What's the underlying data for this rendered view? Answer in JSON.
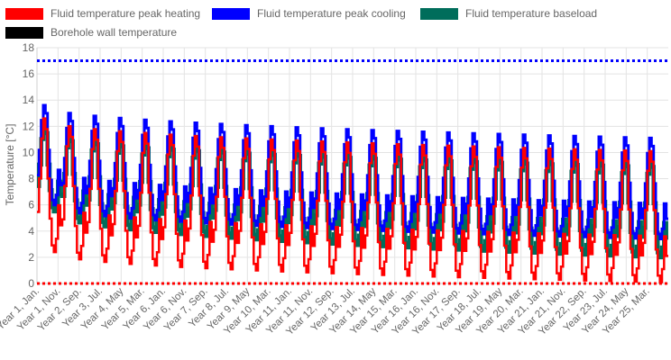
{
  "chart_data": {
    "type": "line",
    "ylabel": "Temperature [°C]",
    "ylim": [
      0,
      18
    ],
    "yticks": [
      0,
      2,
      4,
      6,
      8,
      10,
      12,
      14,
      16,
      18
    ],
    "grid": true,
    "legend_position": "top",
    "x_tick_labels": [
      "Year 1, Jan.",
      "Year 1, Nov.",
      "Year 2, Sep.",
      "Year 3, Jul.",
      "Year 4, May",
      "Year 5, Mar.",
      "Year 6, Jan.",
      "Year 6, Nov.",
      "Year 7, Sep.",
      "Year 8, Jul.",
      "Year 9, May",
      "Year 10, Mar.",
      "Year 11, Jan.",
      "Year 11, Nov.",
      "Year 12, Sep.",
      "Year 13, Jul.",
      "Year 14, May",
      "Year 15, Mar.",
      "Year 16, Jan.",
      "Year 16, Nov.",
      "Year 17, Sep.",
      "Year 18, Jul.",
      "Year 19, May",
      "Year 20, Mar.",
      "Year 21, Jan.",
      "Year 21, Nov.",
      "Year 22, Sep.",
      "Year 23, Jul.",
      "Year 24, May",
      "Year 25, Mar."
    ],
    "x_range_months": [
      0,
      300
    ],
    "series": [
      {
        "name": "Fluid temperature peak heating",
        "color": "#ff0000",
        "style": "dashed-red"
      },
      {
        "name": "Fluid temperature peak cooling",
        "color": "#0000ff",
        "style": "solid-blue"
      },
      {
        "name": "Fluid temperature baseload",
        "color": "#006d5b",
        "style": "thick-teal"
      },
      {
        "name": "Borehole wall temperature",
        "color": "#000000",
        "style": "hidden"
      }
    ],
    "limits": {
      "cooling_max": 17,
      "heating_min": 0
    },
    "annual_profile": {
      "description": "Each of the 25 years repeats a seasonal cycle",
      "peak_cooling_max_year1": 13.6,
      "peak_cooling_max_year25": 11.1,
      "peak_heating_min_year1": 2.4,
      "peak_heating_min_year25": 0.1,
      "baseload_min_year1": 5.5,
      "baseload_min_year25": 2.0
    }
  }
}
